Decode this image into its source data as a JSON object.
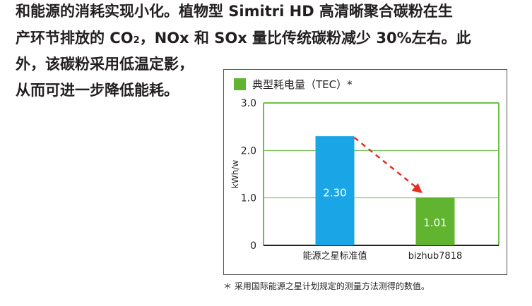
{
  "body_text": {
    "line1": "和能源的消耗实现小化。植物型 Simitri HD 高清晰聚合碳粉在生",
    "line2_before": "产环节排放的 CO",
    "line2_sub": "2",
    "line2_after": "，NOx 和 SOx 量比传统碳粉减少 30%左右。此",
    "line3": "外，该碳粉采用低温定影，",
    "line4": "从而可进一步降低能耗。"
  },
  "footnote": "＊ 采用国际能源之星计划规定的测量方法测得的数值。",
  "colors": {
    "green": "#61b42f",
    "blue": "#1aa6e6",
    "arrow": "#e53020",
    "axis": "#6cc04a"
  },
  "chart_data": {
    "type": "bar",
    "title": "",
    "legend": "典型耗电量（TEC）*",
    "legend_position": "top-left",
    "ylabel": "kWh/w",
    "xlabel": "",
    "ylim": [
      0,
      3.0
    ],
    "yticks": [
      "0",
      "1.0",
      "2.0",
      "3.0"
    ],
    "ytick_values": [
      0,
      1.0,
      2.0,
      3.0
    ],
    "grid": true,
    "categories": [
      "能源之星标准值",
      "bizhub7818"
    ],
    "values": [
      2.3,
      1.01
    ],
    "value_labels": [
      "2.30",
      "1.01"
    ],
    "annotations": [
      {
        "type": "dashed-arrow",
        "from": "能源之星标准值",
        "to": "bizhub7818"
      }
    ]
  }
}
